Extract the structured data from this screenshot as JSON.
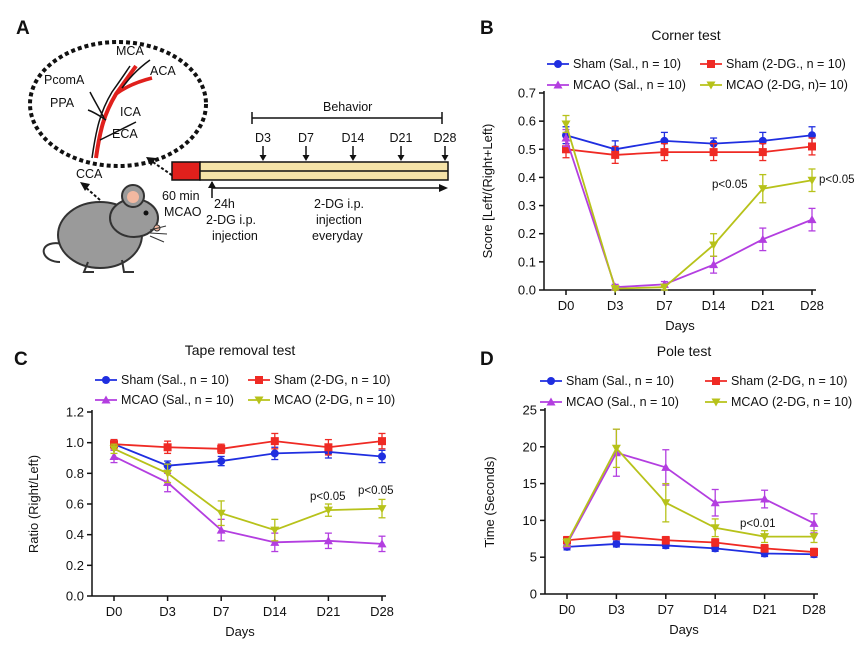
{
  "panels": {
    "A": "A",
    "B": "B",
    "C": "C",
    "D": "D"
  },
  "schematic": {
    "vessels": {
      "mca": "MCA",
      "aca": "ACA",
      "pcoma": "PcomA",
      "ppa": "PPA",
      "ica": "ICA",
      "eca": "ECA",
      "cca": "CCA"
    },
    "behavior": "Behavior",
    "timepoints": [
      "D3",
      "D7",
      "D14",
      "D21",
      "D28"
    ],
    "mcao_line1": "60 min",
    "mcao_line2": "MCAO",
    "injection_first": [
      "24h",
      "2-DG i.p.",
      "injection"
    ],
    "injection_daily": [
      "2-DG i.p.",
      "injection",
      "everyday"
    ],
    "colors": {
      "occlusion": "#e0201c",
      "timeline_fill": "#f5e3a8",
      "mouse": "#9a9a9a",
      "ear": "#f2b8a0"
    }
  },
  "series_style": {
    "sham_sal": {
      "color": "#1f2ee0",
      "marker": "circle"
    },
    "sham_2dg": {
      "color": "#ef2a24",
      "marker": "square"
    },
    "mcao_sal": {
      "color": "#b33ee0",
      "marker": "triangle-up"
    },
    "mcao_2dg": {
      "color": "#b7c21a",
      "marker": "triangle-down"
    }
  },
  "chart_data": [
    {
      "panel": "B",
      "type": "line",
      "title": "Corner test",
      "xlabel": "Days",
      "ylabel": "Score [Left/(Right+Left)",
      "categories": [
        "D0",
        "D3",
        "D7",
        "D14",
        "D21",
        "D28"
      ],
      "ylim": [
        0,
        0.7
      ],
      "yticks": [
        "0.0",
        "0.1",
        "0.2",
        "0.3",
        "0.4",
        "0.5",
        "0.6",
        "0.7"
      ],
      "legend": [
        "Sham (Sal., n = 10)",
        "Sham (2-DG., n = 10)",
        "MCAO (Sal., n = 10)",
        "MCAO (2-DG, n)= 10)"
      ],
      "series": [
        {
          "key": "sham_sal",
          "name": "Sham (Sal., n = 10)",
          "values": [
            0.55,
            0.5,
            0.53,
            0.52,
            0.53,
            0.55
          ],
          "errors": [
            0.03,
            0.03,
            0.03,
            0.02,
            0.03,
            0.03
          ]
        },
        {
          "key": "sham_2dg",
          "name": "Sham (2-DG., n = 10)",
          "values": [
            0.5,
            0.48,
            0.49,
            0.49,
            0.49,
            0.51
          ],
          "errors": [
            0.03,
            0.03,
            0.03,
            0.03,
            0.03,
            0.03
          ]
        },
        {
          "key": "mcao_sal",
          "name": "MCAO (Sal., n = 10)",
          "values": [
            0.54,
            0.01,
            0.02,
            0.09,
            0.18,
            0.25
          ],
          "errors": [
            0.03,
            0.01,
            0.01,
            0.03,
            0.04,
            0.04
          ]
        },
        {
          "key": "mcao_2dg",
          "name": "MCAO (2-DG, n)= 10)",
          "values": [
            0.59,
            0.005,
            0.01,
            0.16,
            0.36,
            0.39
          ],
          "errors": [
            0.03,
            0.005,
            0.01,
            0.04,
            0.05,
            0.04
          ]
        }
      ],
      "annotations": [
        {
          "text": "p<0.05",
          "at": "D21"
        },
        {
          "text": "p<0.05",
          "at": "D28"
        }
      ]
    },
    {
      "panel": "C",
      "type": "line",
      "title": "Tape removal test",
      "xlabel": "Days",
      "ylabel": "Ratio (Right/Left)",
      "categories": [
        "D0",
        "D3",
        "D7",
        "D14",
        "D21",
        "D28"
      ],
      "ylim": [
        0,
        1.2
      ],
      "yticks": [
        "0.0",
        "0.2",
        "0.4",
        "0.6",
        "0.8",
        "1.0",
        "1.2"
      ],
      "legend": [
        "Sham (Sal., n = 10)",
        "Sham (2-DG, n = 10)",
        "MCAO (Sal., n = 10)",
        "MCAO (2-DG, n = 10)"
      ],
      "series": [
        {
          "key": "sham_sal",
          "name": "Sham (Sal., n = 10)",
          "values": [
            0.99,
            0.85,
            0.88,
            0.93,
            0.94,
            0.91
          ],
          "errors": [
            0.03,
            0.03,
            0.03,
            0.04,
            0.04,
            0.04
          ]
        },
        {
          "key": "sham_2dg",
          "name": "Sham (2-DG, n = 10)",
          "values": [
            0.99,
            0.97,
            0.96,
            1.01,
            0.97,
            1.01
          ],
          "errors": [
            0.03,
            0.04,
            0.03,
            0.05,
            0.05,
            0.05
          ]
        },
        {
          "key": "mcao_sal",
          "name": "MCAO (Sal., n = 10)",
          "values": [
            0.91,
            0.74,
            0.43,
            0.35,
            0.36,
            0.34
          ],
          "errors": [
            0.04,
            0.06,
            0.07,
            0.06,
            0.05,
            0.05
          ]
        },
        {
          "key": "mcao_2dg",
          "name": "MCAO (2-DG, n = 10)",
          "values": [
            0.96,
            0.8,
            0.54,
            0.43,
            0.56,
            0.57
          ],
          "errors": [
            0.03,
            0.06,
            0.08,
            0.07,
            0.04,
            0.06
          ]
        }
      ],
      "annotations": [
        {
          "text": "p<0.05",
          "at": "D21"
        },
        {
          "text": "p<0.05",
          "at": "D28"
        }
      ]
    },
    {
      "panel": "D",
      "type": "line",
      "title": "Pole test",
      "xlabel": "Days",
      "ylabel": "Time (Seconds)",
      "categories": [
        "D0",
        "D3",
        "D7",
        "D14",
        "D21",
        "D28"
      ],
      "ylim": [
        0,
        25
      ],
      "yticks": [
        "0",
        "5",
        "10",
        "15",
        "20",
        "25"
      ],
      "legend": [
        "Sham (Sal., n = 10)",
        "Sham (2-DG, n = 10)",
        "MCAO (Sal., n = 10)",
        "MCAO (2-DG, n = 10)"
      ],
      "series": [
        {
          "key": "sham_sal",
          "name": "Sham (Sal., n = 10)",
          "values": [
            6.4,
            6.8,
            6.6,
            6.2,
            5.5,
            5.4
          ],
          "errors": [
            0.4,
            0.4,
            0.4,
            0.4,
            0.4,
            0.4
          ]
        },
        {
          "key": "sham_2dg",
          "name": "Sham (2-DG, n = 10)",
          "values": [
            7.3,
            7.9,
            7.3,
            7.0,
            6.2,
            5.7
          ],
          "errors": [
            0.5,
            0.5,
            0.5,
            0.5,
            0.5,
            0.5
          ]
        },
        {
          "key": "mcao_sal",
          "name": "MCAO (Sal., n = 10)",
          "values": [
            6.8,
            19.2,
            17.2,
            12.4,
            12.9,
            9.6
          ],
          "errors": [
            0.5,
            3.2,
            2.4,
            1.8,
            1.2,
            1.3
          ]
        },
        {
          "key": "mcao_2dg",
          "name": "MCAO (2-DG, n = 10)",
          "values": [
            7.0,
            19.8,
            12.4,
            9.0,
            7.8,
            7.8
          ],
          "errors": [
            0.5,
            2.6,
            2.6,
            1.2,
            0.8,
            0.8
          ]
        }
      ],
      "annotations": [
        {
          "text": "p<0.01",
          "at": "D21"
        }
      ]
    }
  ]
}
